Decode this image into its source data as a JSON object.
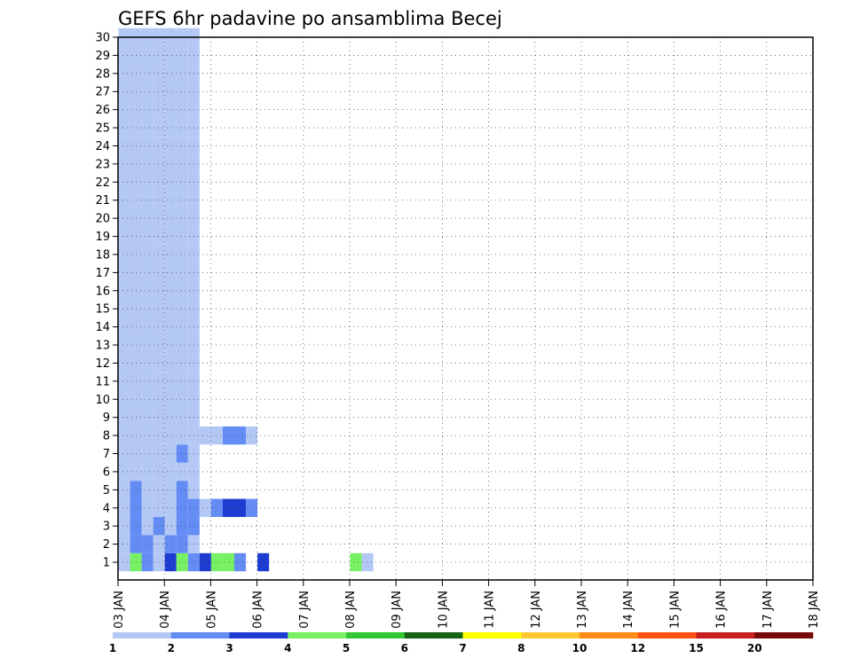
{
  "chart_data": {
    "type": "heatmap",
    "title": "GEFS 6hr padavine po ansamblima Becej",
    "x_ticks": [
      "03 JAN",
      "04 JAN",
      "05 JAN",
      "06 JAN",
      "07 JAN",
      "08 JAN",
      "09 JAN",
      "10 JAN",
      "11 JAN",
      "12 JAN",
      "13 JAN",
      "14 JAN",
      "15 JAN",
      "16 JAN",
      "17 JAN",
      "18 JAN"
    ],
    "y_ticks": [
      "1",
      "2",
      "3",
      "4",
      "5",
      "6",
      "7",
      "8",
      "9",
      "10",
      "11",
      "12",
      "13",
      "14",
      "15",
      "16",
      "17",
      "18",
      "19",
      "20",
      "21",
      "22",
      "23",
      "24",
      "25",
      "26",
      "27",
      "28",
      "29",
      "30"
    ],
    "x_range_days": [
      0,
      15
    ],
    "y_range": [
      0,
      30
    ],
    "grid": true,
    "legend_position": "bottom",
    "legend": {
      "labels": [
        "1",
        "2",
        "3",
        "4",
        "5",
        "6",
        "7",
        "8",
        "10",
        "12",
        "15",
        "20"
      ],
      "colors": [
        "#b4c8f5",
        "#648cf5",
        "#1e3cd2",
        "#78f064",
        "#32c832",
        "#146414",
        "#ffff00",
        "#ffc832",
        "#ff8c14",
        "#ff5014",
        "#c81e1e",
        "#780a0a"
      ]
    },
    "cells": [
      [
        1,
        0,
        1
      ],
      [
        1,
        0.25,
        4
      ],
      [
        1,
        0.5,
        2
      ],
      [
        1,
        0.75,
        1
      ],
      [
        1,
        1,
        3
      ],
      [
        1,
        1.25,
        4
      ],
      [
        1,
        1.5,
        2
      ],
      [
        1,
        1.75,
        3
      ],
      [
        1,
        2,
        4
      ],
      [
        1,
        2.25,
        4
      ],
      [
        1,
        2.5,
        2
      ],
      [
        1,
        3,
        3
      ],
      [
        1,
        5,
        4
      ],
      [
        1,
        5.25,
        1
      ],
      [
        2,
        0,
        1
      ],
      [
        2,
        0.25,
        2
      ],
      [
        2,
        0.5,
        2
      ],
      [
        2,
        0.75,
        1
      ],
      [
        2,
        1,
        2
      ],
      [
        2,
        1.25,
        2
      ],
      [
        2,
        1.5,
        1
      ],
      [
        3,
        0,
        1
      ],
      [
        3,
        0.25,
        2
      ],
      [
        3,
        0.5,
        1
      ],
      [
        3,
        0.75,
        2
      ],
      [
        3,
        1,
        1
      ],
      [
        3,
        1.25,
        2
      ],
      [
        3,
        1.5,
        2
      ],
      [
        4,
        0,
        1
      ],
      [
        4,
        0.25,
        2
      ],
      [
        4,
        0.5,
        1
      ],
      [
        4,
        0.75,
        1
      ],
      [
        4,
        1,
        1
      ],
      [
        4,
        1.25,
        2
      ],
      [
        4,
        1.5,
        2
      ],
      [
        4,
        1.75,
        1
      ],
      [
        4,
        2,
        2
      ],
      [
        4,
        2.25,
        3
      ],
      [
        4,
        2.5,
        3
      ],
      [
        4,
        2.75,
        2
      ],
      [
        5,
        0,
        1
      ],
      [
        5,
        0.25,
        2
      ],
      [
        5,
        0.5,
        1
      ],
      [
        5,
        0.75,
        1
      ],
      [
        5,
        1,
        1
      ],
      [
        5,
        1.25,
        2
      ],
      [
        5,
        1.5,
        1
      ],
      [
        6,
        0,
        1
      ],
      [
        6,
        0.25,
        1
      ],
      [
        6,
        0.5,
        1
      ],
      [
        6,
        0.75,
        1
      ],
      [
        6,
        1,
        1
      ],
      [
        6,
        1.25,
        1
      ],
      [
        6,
        1.5,
        1
      ],
      [
        7,
        0,
        1
      ],
      [
        7,
        0.25,
        1
      ],
      [
        7,
        0.5,
        1
      ],
      [
        7,
        0.75,
        1
      ],
      [
        7,
        1,
        1
      ],
      [
        7,
        1.25,
        2
      ],
      [
        7,
        1.5,
        1
      ],
      [
        8,
        0,
        1
      ],
      [
        8,
        0.25,
        1
      ],
      [
        8,
        0.5,
        1
      ],
      [
        8,
        0.75,
        1
      ],
      [
        8,
        1,
        1
      ],
      [
        8,
        1.25,
        1
      ],
      [
        8,
        1.5,
        1
      ],
      [
        8,
        1.75,
        1
      ],
      [
        8,
        2,
        1
      ],
      [
        8,
        2.25,
        2
      ],
      [
        8,
        2.5,
        2
      ],
      [
        8,
        2.75,
        1
      ],
      [
        9,
        0,
        1
      ],
      [
        9,
        0.25,
        1
      ],
      [
        9,
        0.5,
        1
      ],
      [
        9,
        0.75,
        1
      ],
      [
        9,
        1,
        1
      ],
      [
        9,
        1.25,
        1
      ],
      [
        9,
        1.5,
        1
      ],
      [
        10,
        0,
        1
      ],
      [
        10,
        0.25,
        1
      ],
      [
        10,
        0.5,
        1
      ],
      [
        10,
        0.75,
        1
      ],
      [
        10,
        1,
        1
      ],
      [
        10,
        1.25,
        1
      ],
      [
        10,
        1.5,
        1
      ],
      [
        11,
        0,
        1
      ],
      [
        11,
        0.25,
        1
      ],
      [
        11,
        0.5,
        1
      ],
      [
        11,
        0.75,
        1
      ],
      [
        11,
        1,
        1
      ],
      [
        11,
        1.25,
        1
      ],
      [
        11,
        1.5,
        1
      ],
      [
        12,
        0,
        1
      ],
      [
        12,
        0.25,
        1
      ],
      [
        12,
        0.5,
        1
      ],
      [
        12,
        0.75,
        1
      ],
      [
        12,
        1,
        1
      ],
      [
        12,
        1.25,
        1
      ],
      [
        12,
        1.5,
        1
      ],
      [
        13,
        0,
        1
      ],
      [
        13,
        0.25,
        1
      ],
      [
        13,
        0.5,
        1
      ],
      [
        13,
        0.75,
        1
      ],
      [
        13,
        1,
        1
      ],
      [
        13,
        1.25,
        1
      ],
      [
        13,
        1.5,
        1
      ],
      [
        14,
        0,
        1
      ],
      [
        14,
        0.25,
        1
      ],
      [
        14,
        0.5,
        1
      ],
      [
        14,
        0.75,
        1
      ],
      [
        14,
        1,
        1
      ],
      [
        14,
        1.25,
        1
      ],
      [
        14,
        1.5,
        1
      ],
      [
        15,
        0,
        1
      ],
      [
        15,
        0.25,
        1
      ],
      [
        15,
        0.5,
        1
      ],
      [
        15,
        0.75,
        1
      ],
      [
        15,
        1,
        1
      ],
      [
        15,
        1.25,
        1
      ],
      [
        15,
        1.5,
        1
      ],
      [
        16,
        0,
        1
      ],
      [
        16,
        0.25,
        1
      ],
      [
        16,
        0.5,
        1
      ],
      [
        16,
        0.75,
        1
      ],
      [
        16,
        1,
        1
      ],
      [
        16,
        1.25,
        1
      ],
      [
        16,
        1.5,
        1
      ],
      [
        17,
        0,
        1
      ],
      [
        17,
        0.25,
        1
      ],
      [
        17,
        0.5,
        1
      ],
      [
        17,
        0.75,
        1
      ],
      [
        17,
        1,
        1
      ],
      [
        17,
        1.25,
        1
      ],
      [
        17,
        1.5,
        1
      ],
      [
        18,
        0,
        1
      ],
      [
        18,
        0.25,
        1
      ],
      [
        18,
        0.5,
        1
      ],
      [
        18,
        0.75,
        1
      ],
      [
        18,
        1,
        1
      ],
      [
        18,
        1.25,
        1
      ],
      [
        18,
        1.5,
        1
      ],
      [
        19,
        0,
        1
      ],
      [
        19,
        0.25,
        1
      ],
      [
        19,
        0.5,
        1
      ],
      [
        19,
        0.75,
        1
      ],
      [
        19,
        1,
        1
      ],
      [
        19,
        1.25,
        1
      ],
      [
        19,
        1.5,
        1
      ],
      [
        20,
        0,
        1
      ],
      [
        20,
        0.25,
        1
      ],
      [
        20,
        0.5,
        1
      ],
      [
        20,
        0.75,
        1
      ],
      [
        20,
        1,
        1
      ],
      [
        20,
        1.25,
        1
      ],
      [
        20,
        1.5,
        1
      ],
      [
        21,
        0,
        1
      ],
      [
        21,
        0.25,
        1
      ],
      [
        21,
        0.5,
        1
      ],
      [
        21,
        0.75,
        1
      ],
      [
        21,
        1,
        1
      ],
      [
        21,
        1.25,
        1
      ],
      [
        21,
        1.5,
        1
      ],
      [
        22,
        0,
        1
      ],
      [
        22,
        0.25,
        1
      ],
      [
        22,
        0.5,
        1
      ],
      [
        22,
        0.75,
        1
      ],
      [
        22,
        1,
        1
      ],
      [
        22,
        1.25,
        1
      ],
      [
        22,
        1.5,
        1
      ],
      [
        23,
        0,
        1
      ],
      [
        23,
        0.25,
        1
      ],
      [
        23,
        0.5,
        1
      ],
      [
        23,
        0.75,
        1
      ],
      [
        23,
        1,
        1
      ],
      [
        23,
        1.25,
        1
      ],
      [
        23,
        1.5,
        1
      ],
      [
        24,
        0,
        1
      ],
      [
        24,
        0.25,
        1
      ],
      [
        24,
        0.5,
        1
      ],
      [
        24,
        0.75,
        1
      ],
      [
        24,
        1,
        1
      ],
      [
        24,
        1.25,
        1
      ],
      [
        24,
        1.5,
        1
      ],
      [
        25,
        0,
        1
      ],
      [
        25,
        0.25,
        1
      ],
      [
        25,
        0.5,
        1
      ],
      [
        25,
        0.75,
        1
      ],
      [
        25,
        1,
        1
      ],
      [
        25,
        1.25,
        1
      ],
      [
        25,
        1.5,
        1
      ],
      [
        26,
        0,
        1
      ],
      [
        26,
        0.25,
        1
      ],
      [
        26,
        0.5,
        1
      ],
      [
        26,
        0.75,
        1
      ],
      [
        26,
        1,
        1
      ],
      [
        26,
        1.25,
        1
      ],
      [
        26,
        1.5,
        1
      ],
      [
        27,
        0,
        1
      ],
      [
        27,
        0.25,
        1
      ],
      [
        27,
        0.5,
        1
      ],
      [
        27,
        0.75,
        1
      ],
      [
        27,
        1,
        1
      ],
      [
        27,
        1.25,
        1
      ],
      [
        27,
        1.5,
        1
      ],
      [
        28,
        0,
        1
      ],
      [
        28,
        0.25,
        1
      ],
      [
        28,
        0.5,
        1
      ],
      [
        28,
        0.75,
        1
      ],
      [
        28,
        1,
        1
      ],
      [
        28,
        1.25,
        1
      ],
      [
        28,
        1.5,
        1
      ],
      [
        29,
        0,
        1
      ],
      [
        29,
        0.25,
        1
      ],
      [
        29,
        0.5,
        1
      ],
      [
        29,
        0.75,
        1
      ],
      [
        29,
        1,
        1
      ],
      [
        29,
        1.25,
        1
      ],
      [
        29,
        1.5,
        1
      ],
      [
        30,
        0,
        1
      ],
      [
        30,
        0.25,
        1
      ],
      [
        30,
        0.5,
        1
      ],
      [
        30,
        0.75,
        1
      ],
      [
        30,
        1,
        1
      ],
      [
        30,
        1.25,
        1
      ],
      [
        30,
        1.5,
        1
      ]
    ]
  }
}
